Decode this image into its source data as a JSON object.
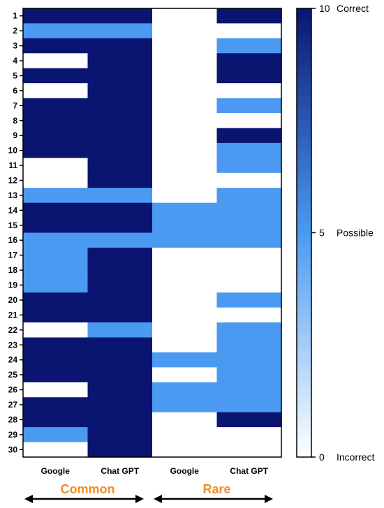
{
  "chart_data": {
    "type": "heatmap",
    "rows": [
      "1",
      "2",
      "3",
      "4",
      "5",
      "6",
      "7",
      "8",
      "9",
      "10",
      "11",
      "12",
      "13",
      "14",
      "15",
      "16",
      "17",
      "18",
      "19",
      "20",
      "21",
      "22",
      "23",
      "24",
      "25",
      "26",
      "27",
      "28",
      "29",
      "30"
    ],
    "columns": [
      {
        "name": "Google",
        "group": "Common"
      },
      {
        "name": "Chat GPT",
        "group": "Common"
      },
      {
        "name": "Google",
        "group": "Rare"
      },
      {
        "name": "Chat GPT",
        "group": "Rare"
      }
    ],
    "groups": [
      "Common",
      "Rare"
    ],
    "values": [
      [
        10,
        10,
        0,
        10
      ],
      [
        5,
        5,
        0,
        0
      ],
      [
        10,
        10,
        0,
        5
      ],
      [
        0,
        10,
        0,
        10
      ],
      [
        10,
        10,
        0,
        10
      ],
      [
        0,
        10,
        0,
        0
      ],
      [
        10,
        10,
        0,
        5
      ],
      [
        10,
        10,
        0,
        0
      ],
      [
        10,
        10,
        0,
        10
      ],
      [
        10,
        10,
        0,
        5
      ],
      [
        0,
        10,
        0,
        5
      ],
      [
        0,
        10,
        0,
        0
      ],
      [
        5,
        5,
        0,
        5
      ],
      [
        10,
        10,
        5,
        5
      ],
      [
        10,
        10,
        5,
        5
      ],
      [
        5,
        5,
        5,
        5
      ],
      [
        5,
        10,
        0,
        0
      ],
      [
        5,
        10,
        0,
        0
      ],
      [
        5,
        10,
        0,
        0
      ],
      [
        10,
        10,
        0,
        5
      ],
      [
        10,
        10,
        0,
        0
      ],
      [
        0,
        5,
        0,
        5
      ],
      [
        10,
        10,
        0,
        5
      ],
      [
        10,
        10,
        5,
        5
      ],
      [
        10,
        10,
        0,
        5
      ],
      [
        0,
        10,
        5,
        5
      ],
      [
        10,
        10,
        5,
        5
      ],
      [
        10,
        10,
        0,
        10
      ],
      [
        5,
        10,
        0,
        0
      ],
      [
        0,
        10,
        0,
        0
      ]
    ],
    "scale": {
      "min": 0,
      "mid": 5,
      "max": 10,
      "labels": [
        {
          "value": 10,
          "tick": "10",
          "text": "Correct"
        },
        {
          "value": 5,
          "tick": "5",
          "text": "Possible"
        },
        {
          "value": 0,
          "tick": "0",
          "text": "Incorrect"
        }
      ]
    },
    "colors": {
      "high": "#0A1572",
      "mid": "#4A9AF2",
      "low": "#FFFFFF"
    }
  }
}
